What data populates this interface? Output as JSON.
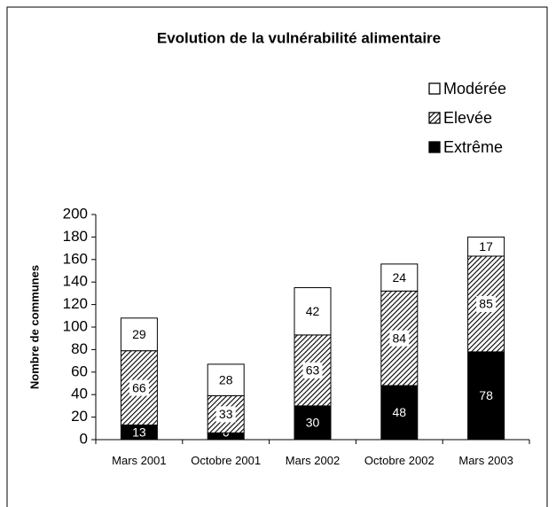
{
  "chart_data": {
    "type": "stacked_bar",
    "title": "Evolution de la vulnérabilité alimentaire",
    "y_label": "Nombre de communes",
    "categories": [
      "Mars 2001",
      "Octobre 2001",
      "Mars 2002",
      "Octobre 2002",
      "Mars 2003"
    ],
    "series": [
      {
        "name": "Extrême",
        "color": "#000000",
        "values": [
          13,
          6,
          30,
          48,
          78
        ]
      },
      {
        "name": "Elevée",
        "color": "#000000",
        "hatched": true,
        "values": [
          66,
          33,
          63,
          84,
          85
        ]
      },
      {
        "name": "Modérée",
        "color": "#ffffff",
        "values": [
          29,
          28,
          42,
          24,
          17
        ]
      }
    ],
    "ylim": [
      0,
      200
    ],
    "yticks": [
      0,
      20,
      40,
      60,
      80,
      100,
      120,
      140,
      160,
      180,
      200
    ],
    "legend": "top-right"
  }
}
